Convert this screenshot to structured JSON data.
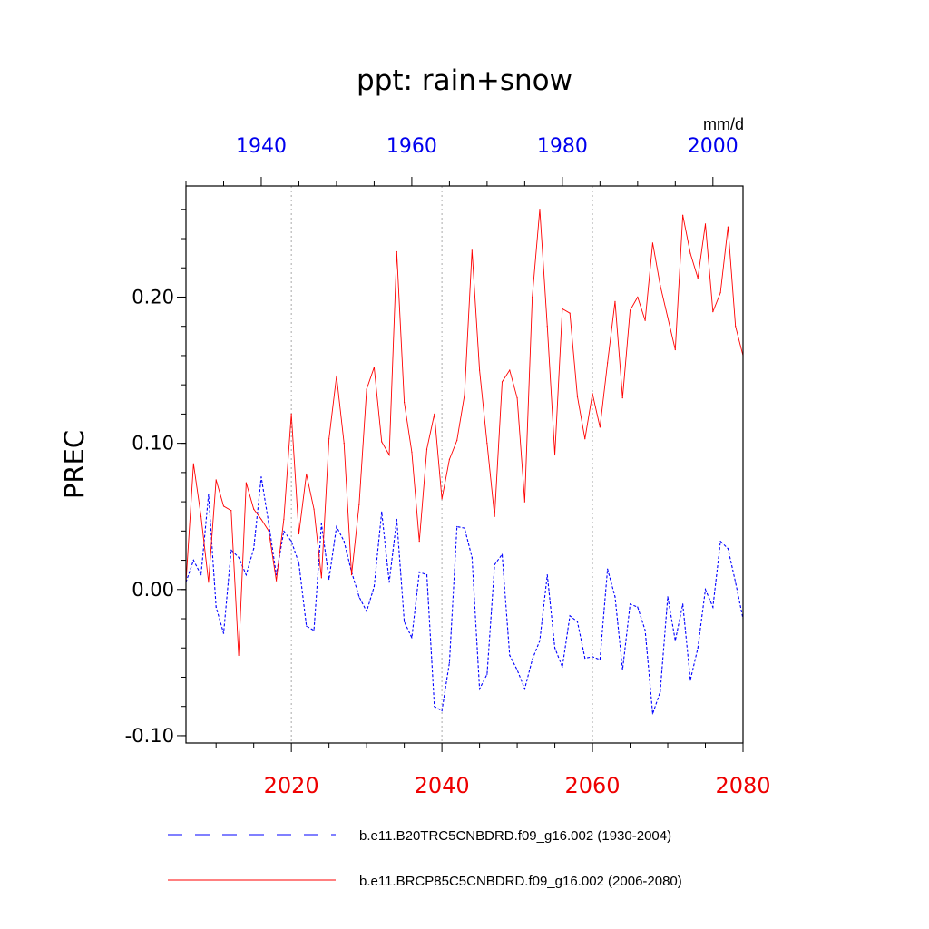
{
  "chart_data": {
    "type": "line",
    "title": "ppt: rain+snow",
    "units": "mm/d",
    "ylabel": "PREC",
    "ylim": [
      -0.105,
      0.276
    ],
    "yticks": [
      "-0.10",
      "0.00",
      "0.10",
      "0.20"
    ],
    "ytick_values": [
      -0.1,
      0.0,
      0.1,
      0.2
    ],
    "bottom_axis": {
      "range": [
        2006,
        2080
      ],
      "tick_labels": [
        "2020",
        "2040",
        "2060",
        "2080"
      ],
      "tick_values": [
        2020,
        2040,
        2060,
        2080
      ],
      "color": "#ee0000"
    },
    "top_axis": {
      "range": [
        1930,
        2004
      ],
      "tick_labels": [
        "1940",
        "1960",
        "1980",
        "2000"
      ],
      "tick_values": [
        1940,
        1960,
        1980,
        2000
      ],
      "color": "#0000ee"
    },
    "vertical_gridlines_at": [
      2020,
      2040,
      2060
    ],
    "series": [
      {
        "name": "b.e11.B20TRC5CNBDRD.f09_g16.002 (1930-2004)",
        "axis": "top",
        "color": "#0000ff",
        "dash": "dashed",
        "x_start": 1930,
        "values": [
          0.005,
          0.02,
          0.01,
          0.065,
          -0.012,
          -0.03,
          0.027,
          0.022,
          0.01,
          0.028,
          0.077,
          0.045,
          0.01,
          0.04,
          0.033,
          0.018,
          -0.025,
          -0.028,
          0.045,
          0.007,
          0.043,
          0.033,
          0.012,
          -0.005,
          -0.015,
          0.002,
          0.053,
          0.005,
          0.048,
          -0.022,
          -0.033,
          0.012,
          0.01,
          -0.08,
          -0.083,
          -0.05,
          0.043,
          0.042,
          0.022,
          -0.068,
          -0.058,
          0.017,
          0.024,
          -0.045,
          -0.055,
          -0.068,
          -0.048,
          -0.035,
          0.01,
          -0.04,
          -0.053,
          -0.018,
          -0.022,
          -0.047,
          -0.046,
          -0.048,
          0.014,
          -0.005,
          -0.055,
          -0.01,
          -0.012,
          -0.028,
          -0.085,
          -0.07,
          -0.005,
          -0.035,
          -0.01,
          -0.062,
          -0.04,
          0.0,
          -0.012,
          0.033,
          0.028,
          0.005,
          -0.02
        ]
      },
      {
        "name": "b.e11.BRCP85C5CNBDRD.f09_g16.002 (2006-2080)",
        "axis": "bottom",
        "color": "#ff0000",
        "dash": "solid",
        "x_start": 2006,
        "values": [
          0.005,
          0.086,
          0.05,
          0.005,
          0.075,
          0.057,
          0.054,
          -0.045,
          0.073,
          0.055,
          0.048,
          0.04,
          0.006,
          0.048,
          0.12,
          0.038,
          0.079,
          0.055,
          0.008,
          0.103,
          0.146,
          0.1,
          0.01,
          0.058,
          0.137,
          0.152,
          0.101,
          0.092,
          0.231,
          0.128,
          0.094,
          0.033,
          0.096,
          0.12,
          0.062,
          0.089,
          0.102,
          0.133,
          0.232,
          0.15,
          0.1,
          0.05,
          0.142,
          0.15,
          0.131,
          0.06,
          0.2,
          0.26,
          0.18,
          0.092,
          0.192,
          0.189,
          0.132,
          0.103,
          0.134,
          0.111,
          0.155,
          0.197,
          0.131,
          0.191,
          0.2,
          0.184,
          0.237,
          0.208,
          0.186,
          0.164,
          0.256,
          0.23,
          0.213,
          0.25,
          0.19,
          0.203,
          0.248,
          0.18,
          0.16
        ]
      }
    ],
    "legend": {
      "position": "bottom",
      "entries": [
        {
          "label": "b.e11.B20TRC5CNBDRD.f09_g16.002 (1930-2004)",
          "color": "#0000ff",
          "dash": "dashed"
        },
        {
          "label": "b.e11.BRCP85C5CNBDRD.f09_g16.002 (2006-2080)",
          "color": "#ff0000",
          "dash": "solid"
        }
      ]
    }
  }
}
